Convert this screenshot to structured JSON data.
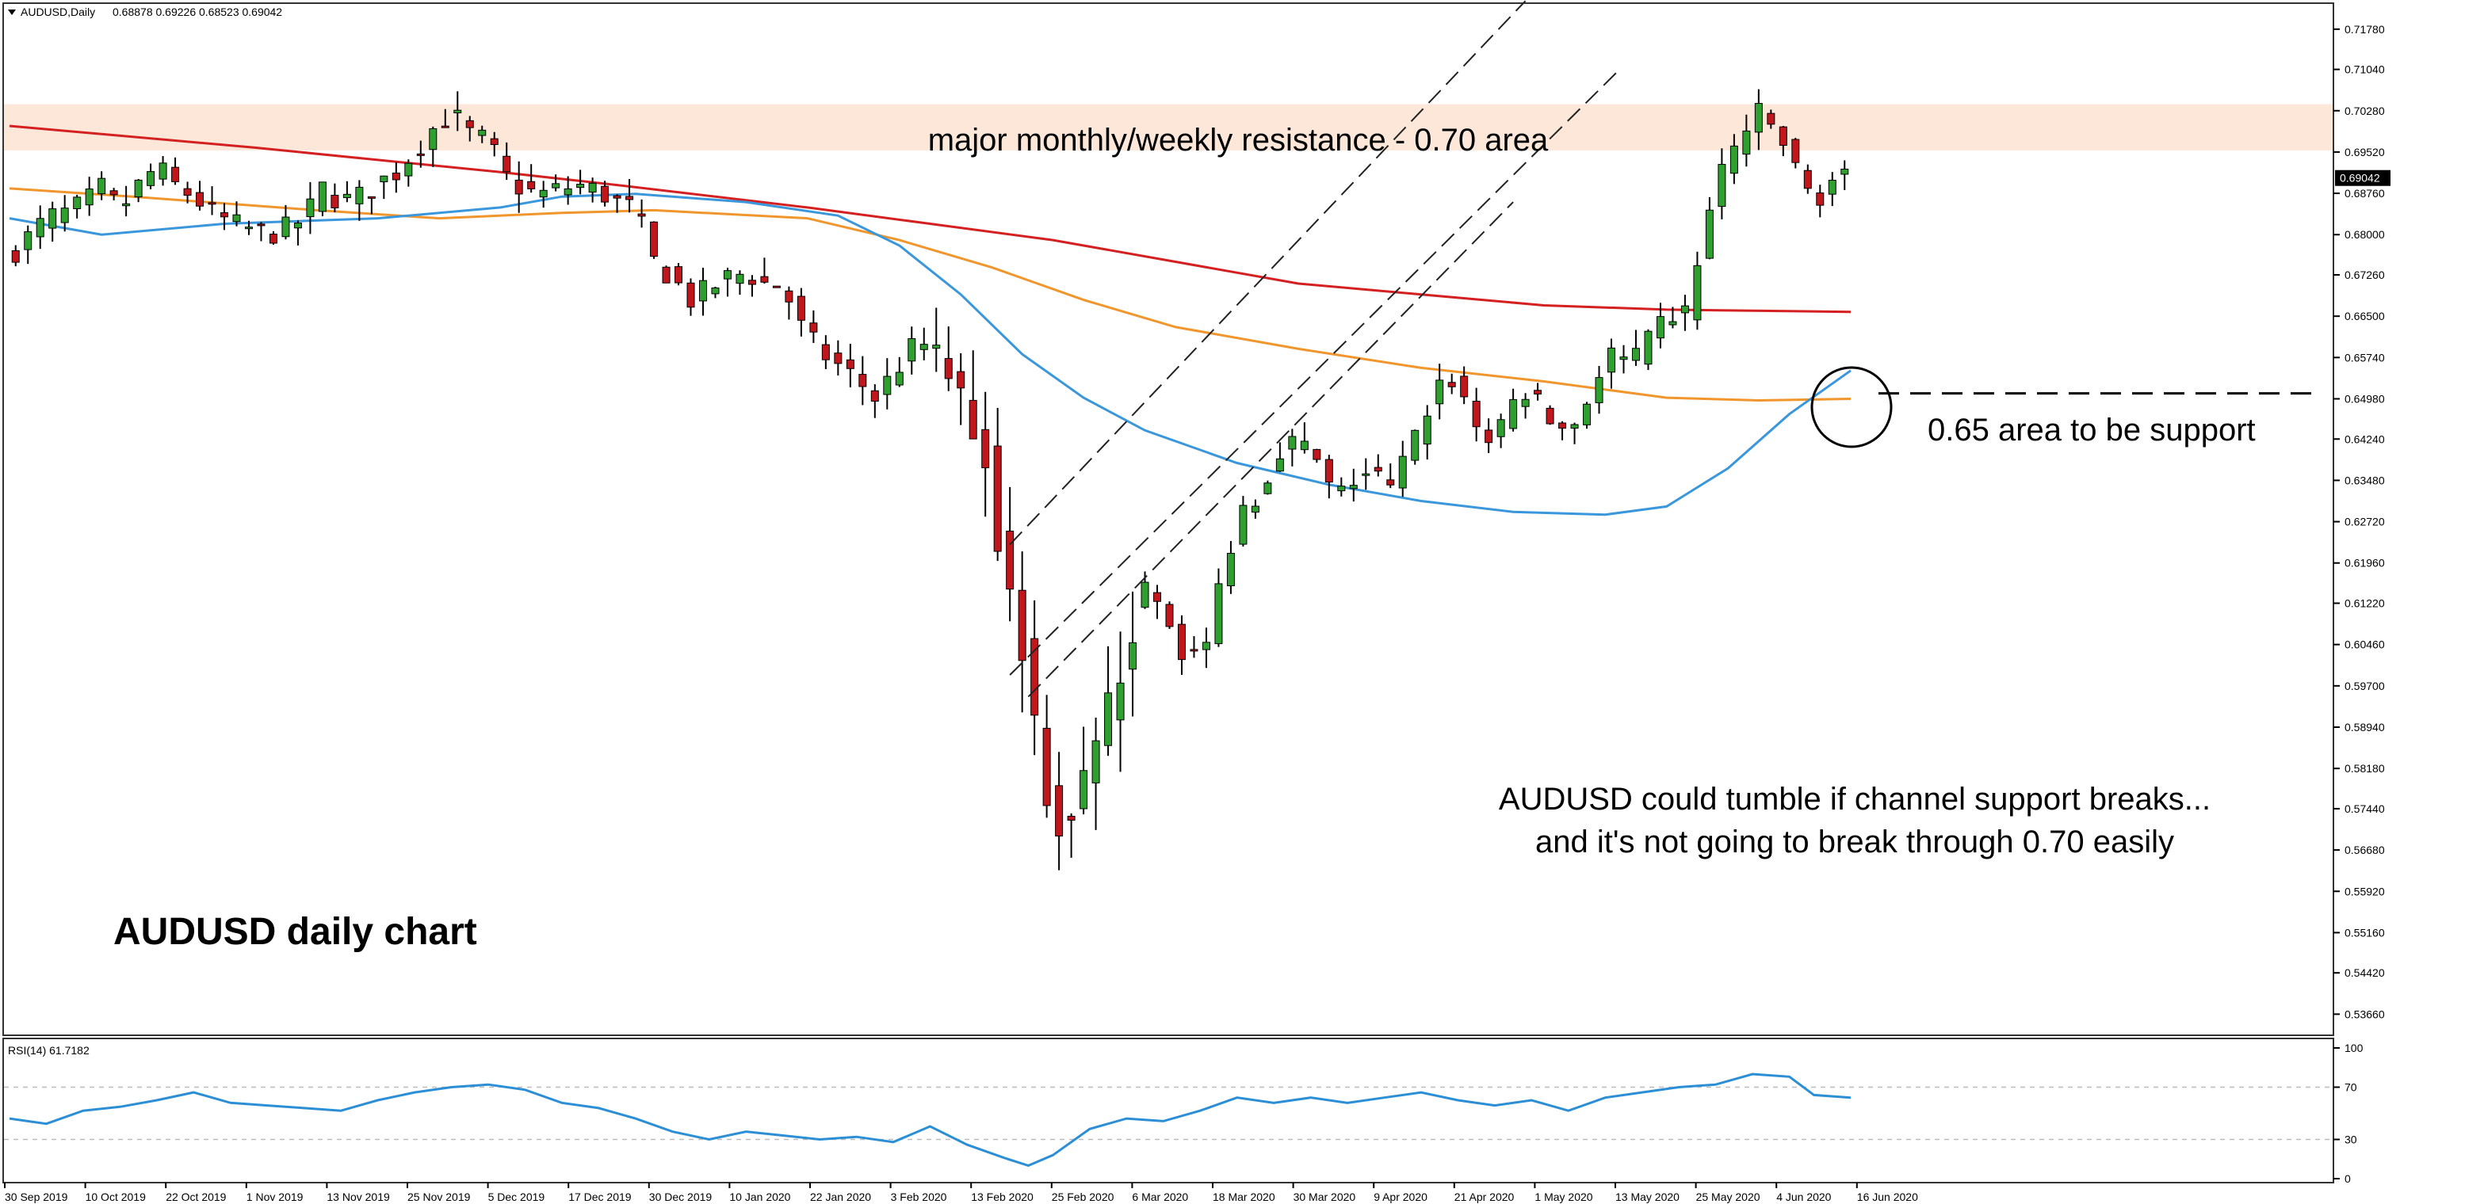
{
  "window": {
    "symbol_header": "AUDUSD,Daily",
    "ohlc_header": "0.68878 0.69226 0.68523 0.69042",
    "dropdown_icon": "triangle-down-icon"
  },
  "annotations": {
    "title": "AUDUSD daily chart",
    "resistance_label": "major monthly/weekly resistance - 0.70 area",
    "support_label": "0.65 area to be support",
    "note_line1": "AUDUSD could tumble if channel support breaks...",
    "note_line2": "and it's not going to break through 0.70 easily",
    "resistance_zone": [
      0.6955,
      0.704
    ],
    "support_level": 0.6508
  },
  "colors": {
    "bull": "#2fa02f",
    "bear": "#c0161c",
    "ma_red": "#d42020",
    "ma_orange": "#f0962c",
    "ma_blue": "#3a97db",
    "rsi_line": "#2c8fd6",
    "resistance_fill": "#fde7d9",
    "price_tag_bg": "#000000"
  },
  "chart_data": [
    {
      "type": "candlestick",
      "name": "AUDUSD Daily",
      "ylim": [
        0.5333,
        0.722
      ],
      "y_ticks": [
        "0.71780",
        "0.71040",
        "0.70280",
        "0.69520",
        "0.68760",
        "0.68000",
        "0.67260",
        "0.66500",
        "0.65740",
        "0.64980",
        "0.64240",
        "0.63480",
        "0.62720",
        "0.61960",
        "0.61220",
        "0.60460",
        "0.59700",
        "0.58940",
        "0.58180",
        "0.57440",
        "0.56680",
        "0.55920",
        "0.55160",
        "0.54420",
        "0.53660"
      ],
      "x_ticks": [
        "30 Sep 2019",
        "10 Oct 2019",
        "22 Oct 2019",
        "1 Nov 2019",
        "13 Nov 2019",
        "25 Nov 2019",
        "5 Dec 2019",
        "17 Dec 2019",
        "30 Dec 2019",
        "10 Jan 2020",
        "22 Jan 2020",
        "3 Feb 2020",
        "13 Feb 2020",
        "25 Feb 2020",
        "6 Mar 2020",
        "18 Mar 2020",
        "30 Mar 2020",
        "9 Apr 2020",
        "21 Apr 2020",
        "1 May 2020",
        "13 May 2020",
        "25 May 2020",
        "4 Jun 2020",
        "16 Jun 2020"
      ],
      "last_price": "0.69042",
      "close_path": [
        [
          0,
          0.676
        ],
        [
          3,
          0.6795
        ],
        [
          6,
          0.683
        ],
        [
          9,
          0.684
        ],
        [
          12,
          0.6855
        ],
        [
          15,
          0.6885
        ],
        [
          18,
          0.6845
        ],
        [
          21,
          0.689
        ],
        [
          24,
          0.6925
        ],
        [
          27,
          0.689
        ],
        [
          30,
          0.687
        ],
        [
          33,
          0.684
        ],
        [
          36,
          0.682
        ],
        [
          39,
          0.681
        ],
        [
          42,
          0.68
        ],
        [
          45,
          0.681
        ],
        [
          48,
          0.683
        ],
        [
          51,
          0.6885
        ],
        [
          54,
          0.686
        ],
        [
          57,
          0.687
        ],
        [
          60,
          0.6895
        ],
        [
          63,
          0.6915
        ],
        [
          66,
          0.6955
        ],
        [
          69,
          0.6995
        ],
        [
          72,
          0.7025
        ],
        [
          75,
          0.6985
        ],
        [
          78,
          0.697
        ],
        [
          81,
          0.6905
        ],
        [
          84,
          0.688
        ],
        [
          87,
          0.6875
        ],
        [
          90,
          0.6885
        ],
        [
          93,
          0.689
        ],
        [
          96,
          0.688
        ],
        [
          99,
          0.686
        ],
        [
          102,
          0.6845
        ],
        [
          105,
          0.675
        ],
        [
          108,
          0.672
        ],
        [
          111,
          0.668
        ],
        [
          114,
          0.67
        ],
        [
          117,
          0.672
        ],
        [
          120,
          0.673
        ],
        [
          123,
          0.671
        ],
        [
          126,
          0.6705
        ],
        [
          129,
          0.663
        ],
        [
          132,
          0.6585
        ],
        [
          135,
          0.656
        ],
        [
          138,
          0.6535
        ],
        [
          141,
          0.65
        ],
        [
          144,
          0.6545
        ],
        [
          147,
          0.659
        ],
        [
          150,
          0.66
        ],
        [
          153,
          0.654
        ],
        [
          156,
          0.648
        ],
        [
          159,
          0.64
        ],
        [
          162,
          0.62
        ],
        [
          165,
          0.605
        ],
        [
          168,
          0.583
        ],
        [
          171,
          0.572
        ],
        [
          174,
          0.575
        ],
        [
          177,
          0.585
        ],
        [
          180,
          0.595
        ],
        [
          183,
          0.612
        ],
        [
          186,
          0.615
        ],
        [
          189,
          0.608
        ],
        [
          192,
          0.6015
        ],
        [
          195,
          0.6045
        ],
        [
          198,
          0.62
        ],
        [
          201,
          0.63
        ],
        [
          204,
          0.633
        ],
        [
          207,
          0.641
        ],
        [
          210,
          0.642
        ],
        [
          213,
          0.638
        ],
        [
          216,
          0.631
        ],
        [
          219,
          0.635
        ],
        [
          222,
          0.6365
        ],
        [
          225,
          0.633
        ],
        [
          228,
          0.64
        ],
        [
          231,
          0.648
        ],
        [
          234,
          0.655
        ],
        [
          237,
          0.65
        ],
        [
          240,
          0.642
        ],
        [
          243,
          0.644
        ],
        [
          246,
          0.652
        ],
        [
          249,
          0.649
        ],
        [
          252,
          0.644
        ],
        [
          255,
          0.6455
        ],
        [
          258,
          0.652
        ],
        [
          261,
          0.658
        ],
        [
          264,
          0.656
        ],
        [
          267,
          0.66
        ],
        [
          270,
          0.665
        ],
        [
          273,
          0.6655
        ],
        [
          276,
          0.68
        ],
        [
          279,
          0.692
        ],
        [
          282,
          0.698
        ],
        [
          285,
          0.702
        ],
        [
          288,
          0.699
        ],
        [
          291,
          0.692
        ],
        [
          294,
          0.686
        ],
        [
          297,
          0.69
        ],
        [
          300,
          0.6904
        ]
      ],
      "moving_averages": [
        {
          "name": "MA red",
          "color": "#d42020",
          "points": [
            [
              0,
              0.7
            ],
            [
              40,
              0.696
            ],
            [
              80,
              0.6915
            ],
            [
              100,
              0.689
            ],
            [
              130,
              0.685
            ],
            [
              150,
              0.682
            ],
            [
              170,
              0.679
            ],
            [
              190,
              0.675
            ],
            [
              210,
              0.671
            ],
            [
              230,
              0.669
            ],
            [
              250,
              0.667
            ],
            [
              270,
              0.6662
            ],
            [
              300,
              0.6658
            ]
          ]
        },
        {
          "name": "MA orange",
          "color": "#f0962c",
          "points": [
            [
              0,
              0.6885
            ],
            [
              20,
              0.687
            ],
            [
              50,
              0.6845
            ],
            [
              70,
              0.683
            ],
            [
              90,
              0.684
            ],
            [
              105,
              0.6845
            ],
            [
              130,
              0.683
            ],
            [
              145,
              0.679
            ],
            [
              160,
              0.674
            ],
            [
              175,
              0.668
            ],
            [
              190,
              0.663
            ],
            [
              210,
              0.659
            ],
            [
              230,
              0.6555
            ],
            [
              250,
              0.653
            ],
            [
              270,
              0.65
            ],
            [
              285,
              0.6495
            ],
            [
              300,
              0.6498
            ]
          ]
        },
        {
          "name": "MA blue",
          "color": "#3a97db",
          "points": [
            [
              0,
              0.683
            ],
            [
              15,
              0.68
            ],
            [
              35,
              0.682
            ],
            [
              60,
              0.683
            ],
            [
              80,
              0.685
            ],
            [
              90,
              0.687
            ],
            [
              102,
              0.6875
            ],
            [
              120,
              0.686
            ],
            [
              135,
              0.6835
            ],
            [
              145,
              0.678
            ],
            [
              155,
              0.669
            ],
            [
              165,
              0.658
            ],
            [
              175,
              0.65
            ],
            [
              185,
              0.644
            ],
            [
              200,
              0.638
            ],
            [
              215,
              0.634
            ],
            [
              230,
              0.631
            ],
            [
              245,
              0.629
            ],
            [
              260,
              0.6285
            ],
            [
              270,
              0.63
            ],
            [
              280,
              0.637
            ],
            [
              290,
              0.647
            ],
            [
              300,
              0.655
            ]
          ]
        }
      ],
      "channel_lines": [
        {
          "name": "upper",
          "from": [
            163,
            0.623
          ],
          "to": [
            247,
            0.723
          ]
        },
        {
          "name": "middle",
          "from": [
            163,
            0.599
          ],
          "to": [
            262,
            0.71
          ]
        },
        {
          "name": "lower",
          "from": [
            166,
            0.595
          ],
          "to": [
            245,
            0.686
          ]
        }
      ]
    },
    {
      "type": "line",
      "name": "RSI(14)",
      "label": "RSI(14) 61.7182",
      "ylim": [
        0,
        100
      ],
      "y_ticks": [
        "100",
        "70",
        "30",
        "0"
      ],
      "levels": [
        70,
        30
      ],
      "values": [
        [
          0,
          46
        ],
        [
          6,
          42
        ],
        [
          12,
          52
        ],
        [
          18,
          55
        ],
        [
          24,
          60
        ],
        [
          30,
          66
        ],
        [
          36,
          58
        ],
        [
          42,
          56
        ],
        [
          48,
          54
        ],
        [
          54,
          52
        ],
        [
          60,
          60
        ],
        [
          66,
          66
        ],
        [
          72,
          70
        ],
        [
          78,
          72
        ],
        [
          84,
          68
        ],
        [
          90,
          58
        ],
        [
          96,
          54
        ],
        [
          102,
          46
        ],
        [
          108,
          36
        ],
        [
          114,
          30
        ],
        [
          120,
          36
        ],
        [
          126,
          33
        ],
        [
          132,
          30
        ],
        [
          138,
          32
        ],
        [
          144,
          28
        ],
        [
          150,
          40
        ],
        [
          156,
          26
        ],
        [
          162,
          16
        ],
        [
          166,
          10
        ],
        [
          170,
          18
        ],
        [
          176,
          38
        ],
        [
          182,
          46
        ],
        [
          188,
          44
        ],
        [
          194,
          52
        ],
        [
          200,
          62
        ],
        [
          206,
          58
        ],
        [
          212,
          62
        ],
        [
          218,
          58
        ],
        [
          224,
          62
        ],
        [
          230,
          66
        ],
        [
          236,
          60
        ],
        [
          242,
          56
        ],
        [
          248,
          60
        ],
        [
          254,
          52
        ],
        [
          260,
          62
        ],
        [
          266,
          66
        ],
        [
          272,
          70
        ],
        [
          278,
          72
        ],
        [
          284,
          80
        ],
        [
          290,
          78
        ],
        [
          294,
          64
        ],
        [
          300,
          62
        ]
      ]
    }
  ]
}
